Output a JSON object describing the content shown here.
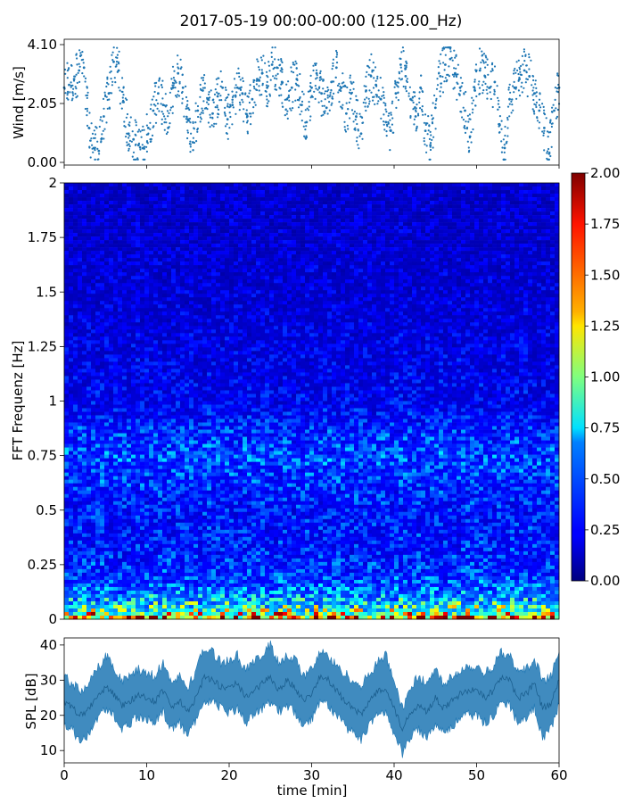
{
  "title": "2017-05-19 00:00-00:00 (125.00_Hz)",
  "chart_data": [
    {
      "type": "scatter",
      "ylabel": "Wind [m/s]",
      "xlim": [
        0,
        60
      ],
      "ylim": [
        0,
        4.1
      ],
      "yticks": [
        "0.00",
        "2.05",
        "4.10"
      ],
      "color": "#1f77b4",
      "x": [
        0.0,
        0.6,
        1.2,
        1.8,
        2.4,
        3.0,
        3.6,
        4.2,
        4.8,
        5.4,
        6.0,
        6.6,
        7.2,
        7.8,
        8.4,
        9.0,
        9.6,
        10.2,
        10.8,
        11.4,
        12.0,
        12.6,
        13.2,
        13.8,
        14.4,
        15.0,
        15.6,
        16.2,
        16.8,
        17.4,
        18.0,
        18.6,
        19.2,
        19.8,
        20.4,
        21.0,
        21.6,
        22.2,
        22.8,
        23.4,
        24.0,
        24.6,
        25.2,
        25.8,
        26.4,
        27.0,
        27.6,
        28.2,
        28.8,
        29.4,
        30.0,
        30.6,
        31.2,
        31.8,
        32.4,
        33.0,
        33.6,
        34.2,
        34.8,
        35.4,
        36.0,
        36.6,
        37.2,
        37.8,
        38.4,
        39.0,
        39.6,
        40.2,
        40.8,
        41.4,
        42.0,
        42.6,
        43.2,
        43.8,
        44.4,
        45.0,
        45.6,
        46.2,
        46.8,
        47.4,
        48.0,
        48.6,
        49.2,
        49.8,
        50.4,
        51.0,
        51.6,
        52.2,
        52.8,
        53.4,
        54.0,
        54.6,
        55.2,
        55.8,
        56.4,
        57.0,
        57.6,
        58.2,
        58.8,
        59.4,
        60.0
      ],
      "y": [
        2.6,
        2.7,
        2.9,
        3.2,
        3.3,
        1.2,
        0.5,
        0.4,
        1.6,
        2.4,
        3.5,
        3.2,
        2.1,
        1.0,
        0.8,
        0.6,
        0.5,
        1.2,
        1.8,
        2.4,
        2.0,
        1.2,
        2.6,
        3.1,
        2.6,
        1.5,
        0.7,
        1.8,
        2.5,
        2.2,
        1.7,
        2.3,
        2.6,
        1.5,
        2.0,
        2.6,
        2.4,
        1.6,
        2.2,
        2.9,
        3.1,
        2.6,
        3.4,
        3.3,
        2.8,
        2.2,
        2.6,
        2.9,
        2.0,
        1.4,
        2.6,
        3.1,
        2.4,
        1.9,
        2.8,
        3.3,
        2.6,
        1.7,
        2.4,
        1.6,
        1.0,
        2.5,
        3.0,
        2.7,
        2.2,
        1.4,
        1.1,
        2.4,
        3.4,
        3.0,
        2.2,
        1.6,
        2.6,
        1.1,
        0.6,
        1.9,
        3.0,
        3.4,
        3.6,
        3.1,
        2.6,
        1.8,
        0.9,
        2.5,
        3.2,
        3.0,
        2.6,
        2.8,
        1.3,
        0.5,
        2.2,
        2.6,
        2.9,
        3.2,
        3.0,
        2.4,
        1.8,
        1.2,
        0.3,
        1.8,
        2.6
      ]
    },
    {
      "type": "heatmap",
      "ylabel": "FFT Frequenz [Hz]",
      "xlim": [
        0,
        60
      ],
      "ylim": [
        0,
        2
      ],
      "yticks": [
        "0",
        "0.25",
        "0.5",
        "0.75",
        "1",
        "1.25",
        "1.5",
        "1.75",
        "2"
      ],
      "colormap": "jet",
      "clim": [
        0,
        2
      ],
      "colorbar_ticks": [
        "0.00",
        "0.25",
        "0.50",
        "0.75",
        "1.00",
        "1.25",
        "1.50",
        "1.75",
        "2.00"
      ],
      "band_profile": {
        "freq": [
          0.0,
          0.02,
          0.05,
          0.1,
          0.2,
          0.3,
          0.5,
          0.75,
          1.0,
          1.5,
          2.0
        ],
        "level": [
          1.9,
          1.2,
          0.85,
          0.55,
          0.38,
          0.32,
          0.3,
          0.42,
          0.24,
          0.18,
          0.16
        ]
      }
    },
    {
      "type": "area",
      "ylabel": "SPL [dB]",
      "xlabel": "time [min]",
      "xlim": [
        0,
        60
      ],
      "ylim": [
        6.5,
        42
      ],
      "yticks": [
        "10",
        "20",
        "30",
        "40"
      ],
      "xticks": [
        "0",
        "10",
        "20",
        "30",
        "40",
        "50",
        "60"
      ],
      "color": "#1f77b4",
      "x": [
        0,
        1,
        2,
        3,
        4,
        5,
        6,
        7,
        8,
        9,
        10,
        11,
        12,
        13,
        14,
        15,
        16,
        17,
        18,
        19,
        20,
        21,
        22,
        23,
        24,
        25,
        26,
        27,
        28,
        29,
        30,
        31,
        32,
        33,
        34,
        35,
        36,
        37,
        38,
        39,
        40,
        41,
        42,
        43,
        44,
        45,
        46,
        47,
        48,
        49,
        50,
        51,
        52,
        53,
        54,
        55,
        56,
        57,
        58,
        59,
        60
      ],
      "y_mid": [
        24,
        22,
        20,
        22,
        25,
        28,
        26,
        23,
        24,
        26,
        25,
        24,
        27,
        22,
        24,
        21,
        25,
        31,
        30,
        28,
        28,
        29,
        25,
        27,
        29,
        31,
        27,
        30,
        28,
        24,
        26,
        31,
        30,
        27,
        24,
        22,
        20,
        24,
        27,
        28,
        22,
        16,
        21,
        23,
        21,
        25,
        22,
        24,
        26,
        27,
        27,
        25,
        27,
        31,
        30,
        25,
        26,
        29,
        22,
        23,
        30
      ],
      "y_low": [
        18,
        16,
        12,
        15,
        19,
        22,
        20,
        16,
        18,
        20,
        19,
        18,
        21,
        16,
        18,
        14,
        19,
        24,
        24,
        22,
        21,
        22,
        18,
        20,
        22,
        24,
        21,
        23,
        21,
        17,
        19,
        24,
        23,
        20,
        17,
        15,
        13,
        17,
        20,
        21,
        15,
        9,
        14,
        16,
        14,
        18,
        15,
        17,
        19,
        20,
        20,
        18,
        20,
        24,
        23,
        18,
        19,
        22,
        14,
        16,
        23
      ],
      "y_high": [
        31,
        29,
        27,
        29,
        33,
        37,
        34,
        30,
        31,
        33,
        32,
        31,
        35,
        29,
        31,
        28,
        33,
        39,
        38,
        35,
        36,
        37,
        33,
        35,
        37,
        40,
        35,
        37,
        36,
        31,
        33,
        38,
        37,
        34,
        32,
        30,
        28,
        32,
        35,
        37,
        30,
        22,
        28,
        31,
        29,
        33,
        29,
        31,
        33,
        34,
        34,
        32,
        34,
        38,
        37,
        32,
        33,
        36,
        30,
        31,
        38
      ]
    }
  ]
}
